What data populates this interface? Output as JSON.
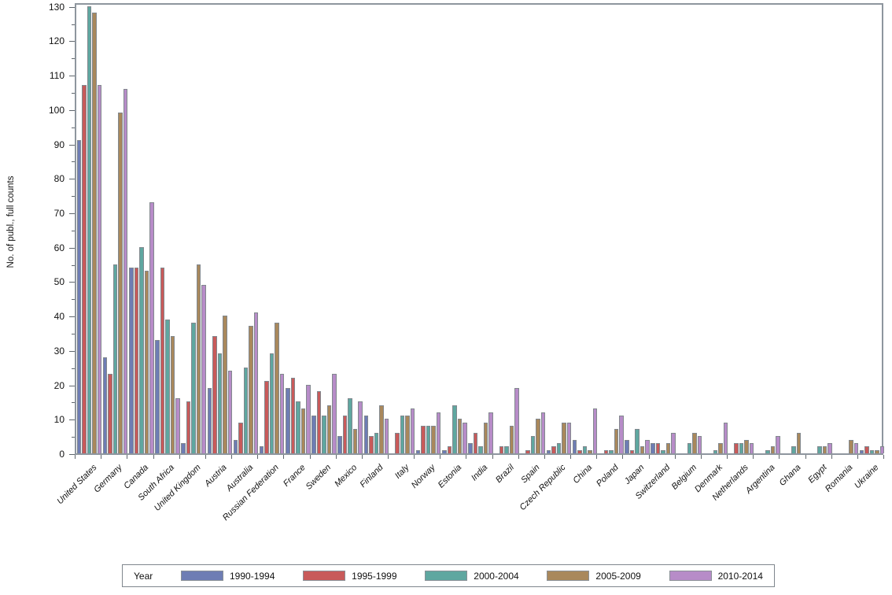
{
  "chart_data": {
    "type": "bar",
    "title": "",
    "xlabel": "",
    "ylabel": "No. of publ., full counts",
    "ylim": [
      0,
      130
    ],
    "yticks": [
      0,
      10,
      20,
      30,
      40,
      50,
      60,
      70,
      80,
      90,
      100,
      110,
      120,
      130
    ],
    "yminor_step": 5,
    "grid": false,
    "legend_title": "Year",
    "legend_position": "bottom",
    "frame": true,
    "categories": [
      "United States",
      "Germany",
      "Canada",
      "South Africa",
      "United Kingdom",
      "Austria",
      "Australia",
      "Russian Federation",
      "France",
      "Sweden",
      "Mexico",
      "Finland",
      "Italy",
      "Norway",
      "Estonia",
      "India",
      "Brazil",
      "Spain",
      "Czech Republic",
      "China",
      "Poland",
      "Japan",
      "Switzerland",
      "Belgium",
      "Denmark",
      "Netherlands",
      "Argentina",
      "Ghana",
      "Egypt",
      "Romania",
      "Ukraine"
    ],
    "series": [
      {
        "name": "1990-1994",
        "color": "#6E7DB4",
        "values": [
          91,
          28,
          54,
          33,
          3,
          19,
          4,
          2,
          19,
          11,
          5,
          11,
          0,
          1,
          1,
          3,
          0,
          0,
          1,
          4,
          0,
          4,
          3,
          0,
          0,
          0,
          0,
          0,
          0,
          0,
          1
        ]
      },
      {
        "name": "1995-1999",
        "color": "#C85A5A",
        "values": [
          107,
          23,
          54,
          54,
          15,
          34,
          9,
          21,
          22,
          18,
          11,
          5,
          6,
          8,
          2,
          6,
          2,
          1,
          2,
          1,
          1,
          1,
          3,
          0,
          0,
          3,
          0,
          0,
          0,
          0,
          2
        ]
      },
      {
        "name": "2000-2004",
        "color": "#5FA7A0",
        "values": [
          130,
          55,
          60,
          39,
          38,
          29,
          25,
          29,
          15,
          11,
          16,
          6,
          11,
          8,
          14,
          2,
          2,
          5,
          3,
          2,
          1,
          7,
          1,
          3,
          1,
          3,
          1,
          2,
          2,
          0,
          1
        ]
      },
      {
        "name": "2005-2009",
        "color": "#A9885C",
        "values": [
          128,
          99,
          53,
          34,
          55,
          40,
          37,
          38,
          13,
          14,
          7,
          14,
          11,
          8,
          10,
          9,
          8,
          10,
          9,
          1,
          7,
          2,
          3,
          6,
          3,
          4,
          2,
          6,
          2,
          4,
          1
        ]
      },
      {
        "name": "2010-2014",
        "color": "#B78CC8",
        "values": [
          107,
          106,
          73,
          16,
          49,
          24,
          41,
          23,
          20,
          23,
          15,
          10,
          13,
          12,
          9,
          12,
          19,
          12,
          9,
          13,
          11,
          4,
          6,
          5,
          9,
          3,
          5,
          0,
          3,
          3,
          2
        ]
      }
    ]
  }
}
